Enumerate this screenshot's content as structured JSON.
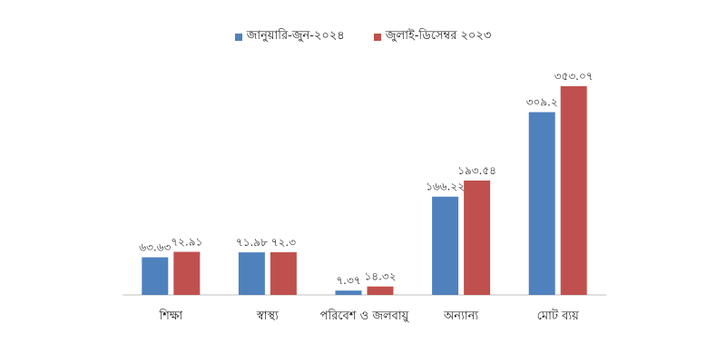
{
  "chart_data": {
    "type": "bar",
    "categories": [
      "শিক্ষা",
      "স্বাস্থ্য",
      "পরিবেশ ও জলবায়ু",
      "অন্যান্য",
      "মোট ব্যয়"
    ],
    "series": [
      {
        "name": "জানুয়ারি-জুন-২০২৪",
        "color": "#4F81BD",
        "values": [
          63.63,
          71.98,
          7.37,
          166.22,
          309.2
        ],
        "labels": [
          "৬৩.৬৩",
          "৭১.৯৮",
          "৭.৩৭",
          "১৬৬.২২",
          "৩০৯.২"
        ]
      },
      {
        "name": "জুলাই-ডিসেম্বর ২০২৩",
        "color": "#C0504D",
        "values": [
          72.91,
          72.3,
          14.32,
          193.54,
          353.07
        ],
        "labels": [
          "৭২.৯১",
          "৭২.৩",
          "১৪.৩২",
          "১৯৩.৫৪",
          "৩৫৩.০৭"
        ]
      }
    ],
    "ylim": [
      0,
      380
    ],
    "grid": false,
    "legend": "top-center",
    "title": "",
    "xlabel": "",
    "ylabel": ""
  }
}
